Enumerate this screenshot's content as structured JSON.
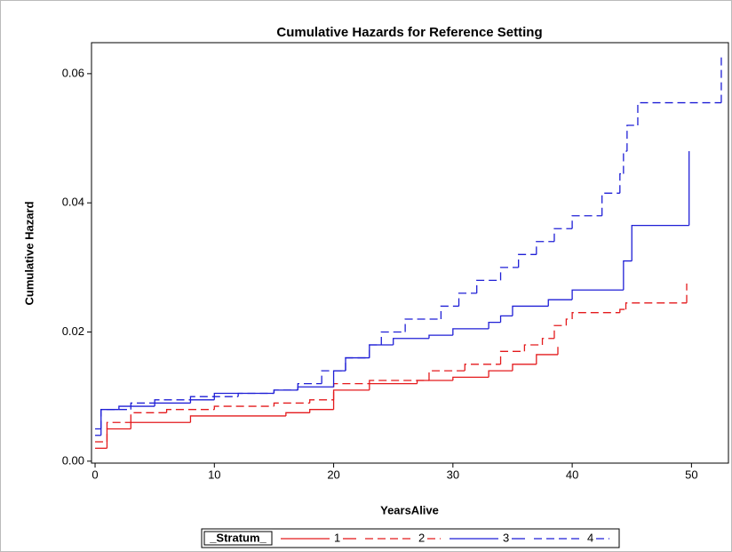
{
  "chart_data": {
    "type": "step",
    "title": "Cumulative Hazards for Reference Setting",
    "x_label": "YearsAlive",
    "y_label": "Cumulative Hazard",
    "legend_title": "_Stratum_",
    "legend_position": "bottom",
    "xlim": [
      -0.3,
      53.1
    ],
    "ylim": [
      -0.0003,
      0.0648
    ],
    "xticks": [
      0,
      10,
      20,
      30,
      40,
      50
    ],
    "yticks": [
      {
        "value": 0,
        "label": "0.00"
      },
      0.02,
      0.04,
      0.06
    ],
    "series": [
      {
        "name": "1",
        "color": "#e41a1c",
        "dash": "solid",
        "x": [
          0,
          1,
          3,
          8,
          16,
          18,
          20,
          23,
          27,
          30,
          33,
          35,
          37,
          38.8
        ],
        "values": [
          0.002,
          0.005,
          0.006,
          0.007,
          0.0075,
          0.008,
          0.011,
          0.012,
          0.0125,
          0.013,
          0.014,
          0.015,
          0.0165,
          0.0177
        ]
      },
      {
        "name": "2",
        "color": "#e41a1c",
        "dash": "dashed",
        "x": [
          0,
          1,
          3,
          6,
          10,
          15,
          18,
          20,
          23,
          28,
          31,
          34,
          36,
          37.5,
          38.5,
          39.5,
          40,
          44,
          44.5,
          49.6
        ],
        "values": [
          0.003,
          0.006,
          0.0075,
          0.008,
          0.0085,
          0.009,
          0.0095,
          0.012,
          0.0125,
          0.014,
          0.015,
          0.017,
          0.018,
          0.019,
          0.021,
          0.022,
          0.023,
          0.0235,
          0.0245,
          0.0275
        ]
      },
      {
        "name": "3",
        "color": "#1f1fd6",
        "dash": "solid",
        "x": [
          0,
          0.5,
          2,
          5,
          8,
          10,
          15,
          17,
          20,
          21,
          23,
          25,
          28,
          30,
          33,
          34,
          35,
          38,
          40,
          44.3,
          45,
          49.8
        ],
        "values": [
          0.004,
          0.008,
          0.0085,
          0.009,
          0.0095,
          0.0105,
          0.011,
          0.0115,
          0.014,
          0.016,
          0.018,
          0.019,
          0.0195,
          0.0205,
          0.0215,
          0.0225,
          0.024,
          0.025,
          0.0265,
          0.031,
          0.0365,
          0.048
        ]
      },
      {
        "name": "4",
        "color": "#1f1fd6",
        "dash": "dashed",
        "x": [
          0,
          0.5,
          3,
          5,
          8,
          12,
          15,
          17,
          19,
          21,
          23,
          24,
          26,
          29,
          30.5,
          32,
          34,
          35.5,
          37,
          38.5,
          40,
          42.5,
          44,
          44.3,
          44.6,
          45.5,
          52.5
        ],
        "values": [
          0.005,
          0.008,
          0.009,
          0.0095,
          0.01,
          0.0105,
          0.011,
          0.012,
          0.014,
          0.016,
          0.018,
          0.02,
          0.022,
          0.024,
          0.026,
          0.028,
          0.03,
          0.032,
          0.034,
          0.036,
          0.038,
          0.0415,
          0.0445,
          0.048,
          0.052,
          0.0555,
          0.063
        ]
      }
    ]
  }
}
